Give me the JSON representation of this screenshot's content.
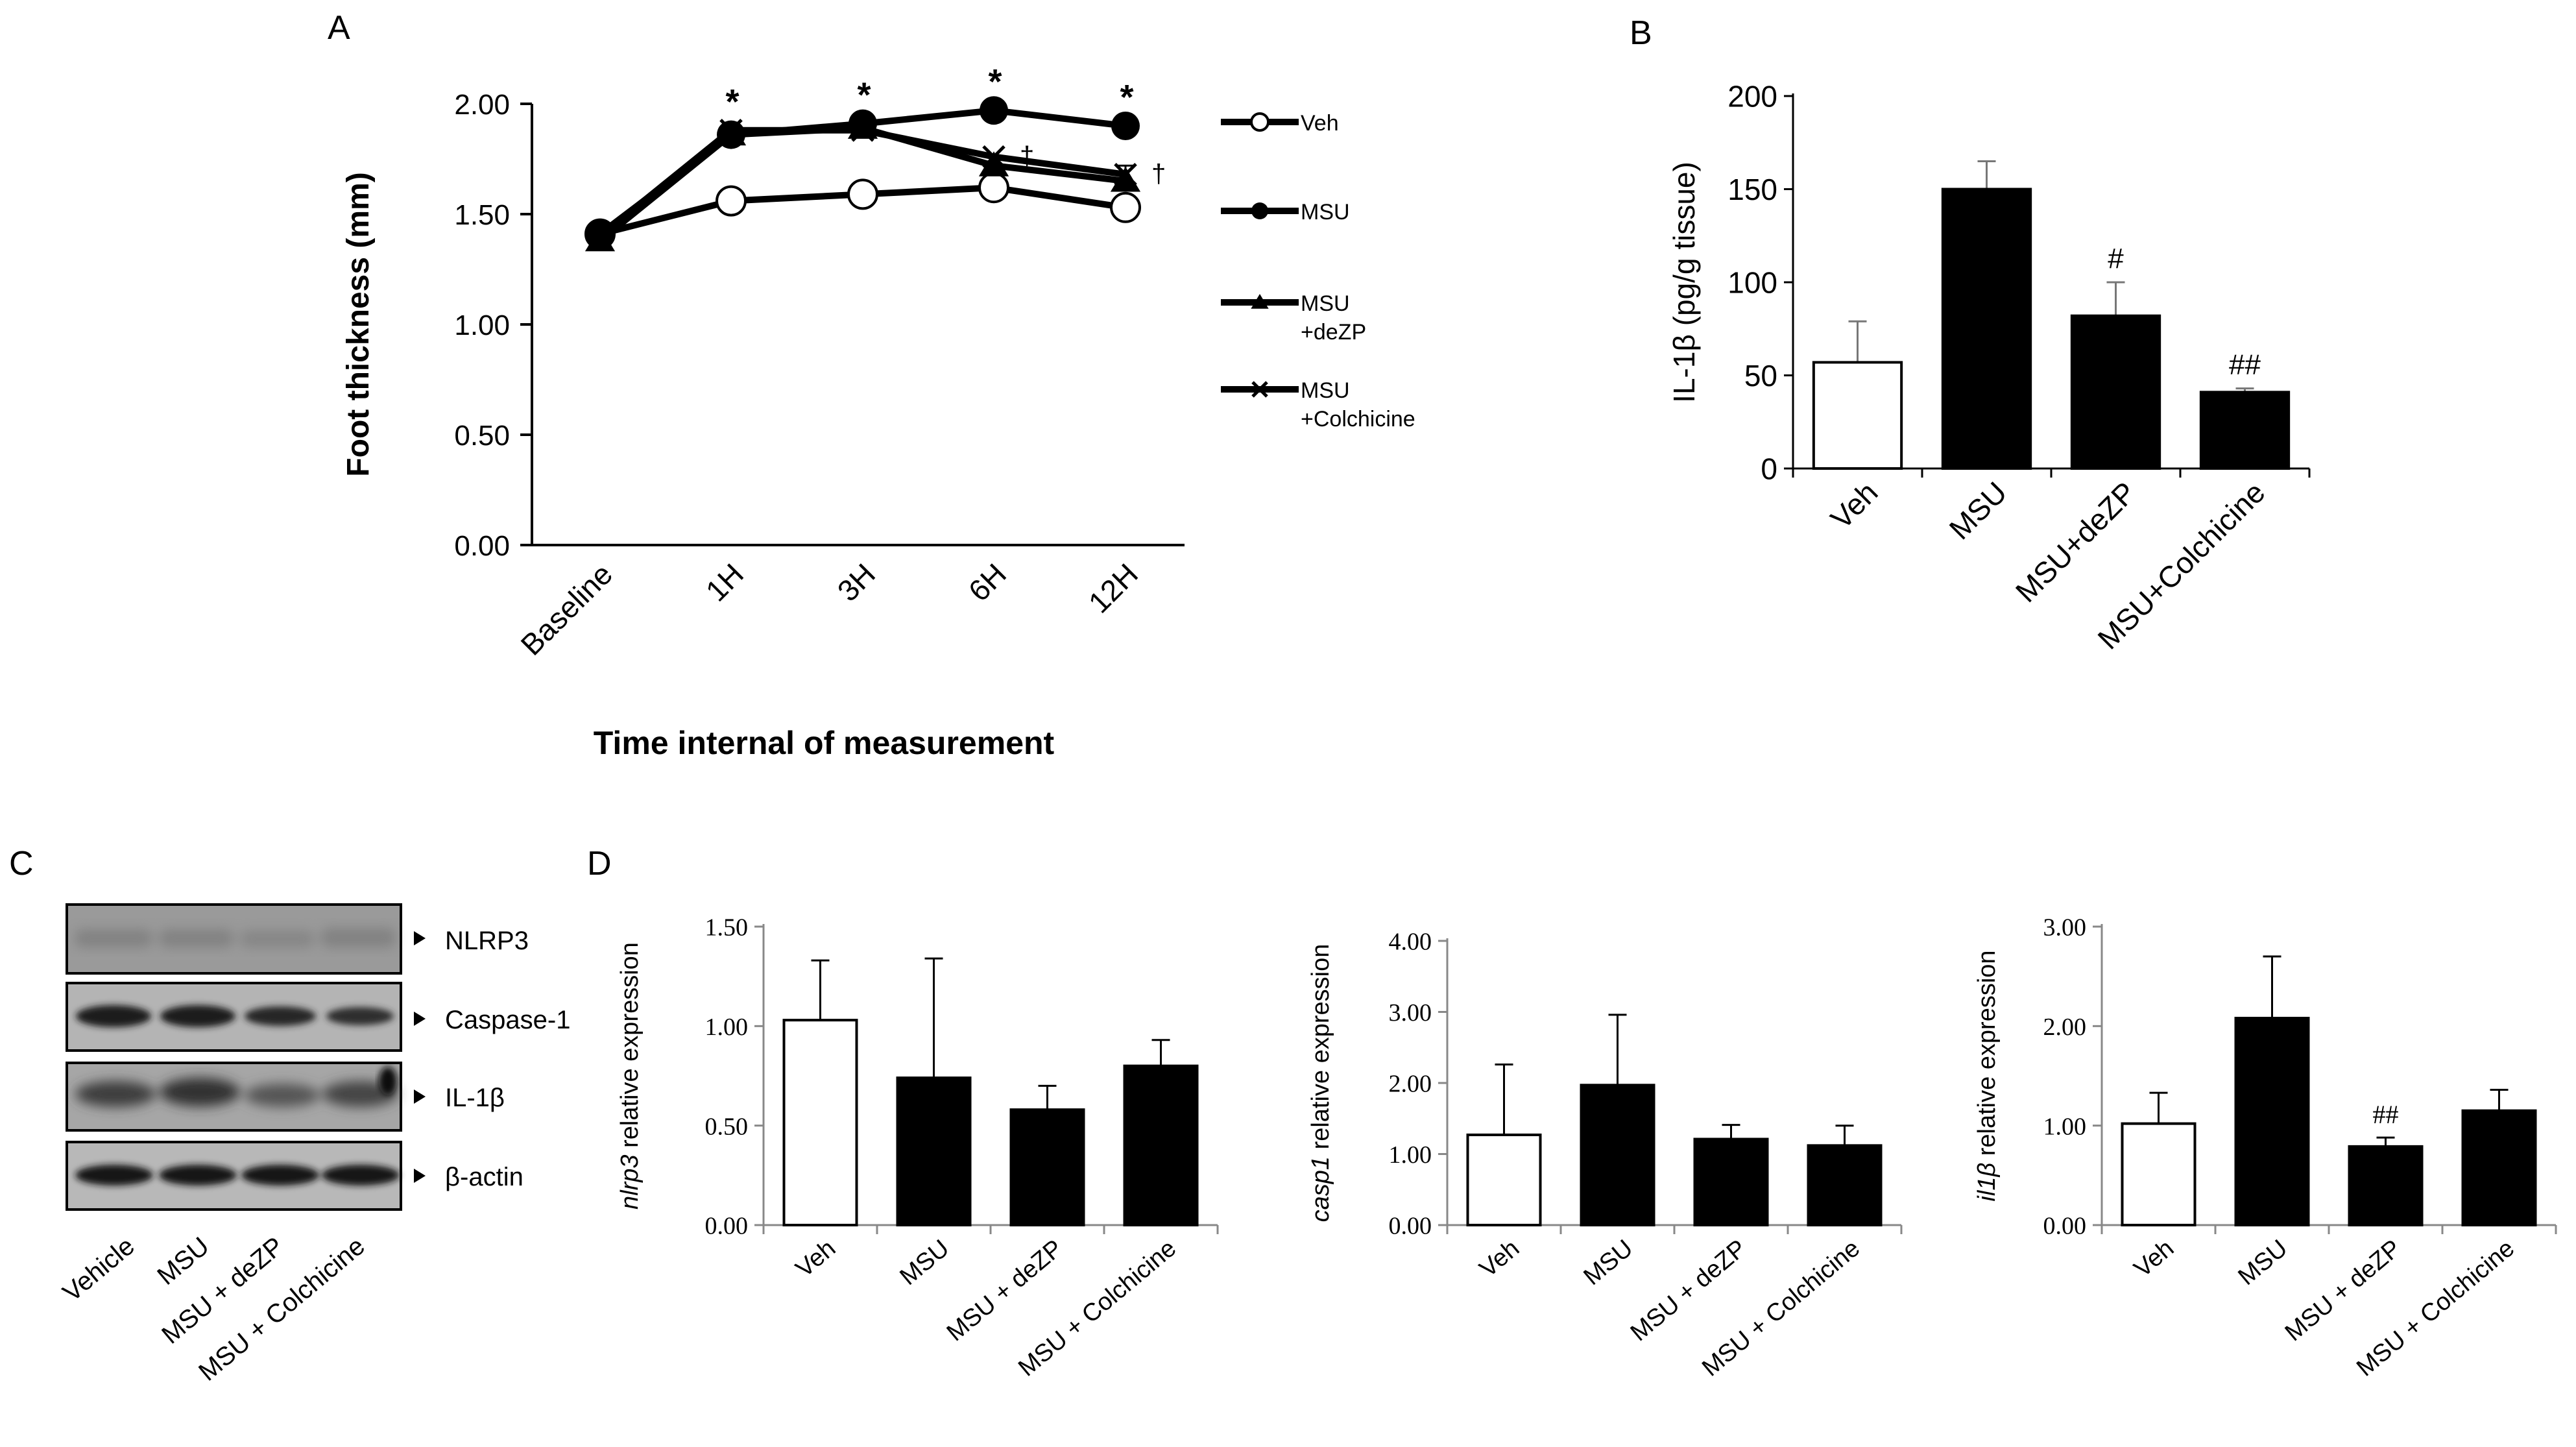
{
  "chart_data": [
    {
      "id": "A",
      "panel_label": "A",
      "type": "line",
      "xlabel": "Time internal of measurement",
      "ylabel": "Foot thickness (mm)",
      "categories": [
        "Baseline",
        "1H",
        "3H",
        "6H",
        "12H"
      ],
      "ylim": [
        0,
        2
      ],
      "yticks": [
        "0.00",
        "0.50",
        "1.00",
        "1.50",
        "2.00"
      ],
      "grid": false,
      "legend_position": "right",
      "series": [
        {
          "name": "Veh",
          "marker": "open-circle",
          "values": [
            1.41,
            1.56,
            1.59,
            1.62,
            1.53
          ]
        },
        {
          "name": "MSU",
          "marker": "filled-circle",
          "values": [
            1.41,
            1.86,
            1.91,
            1.97,
            1.9
          ]
        },
        {
          "name": "MSU +deZP",
          "legend_lines": [
            "MSU",
            "+deZP"
          ],
          "marker": "triangle",
          "values": [
            1.38,
            1.86,
            1.89,
            1.72,
            1.65
          ]
        },
        {
          "name": "MSU +Colchicine",
          "legend_lines": [
            "MSU",
            "+Colchicine"
          ],
          "marker": "cross",
          "values": [
            1.4,
            1.88,
            1.88,
            1.76,
            1.68
          ]
        }
      ],
      "annotations": [
        {
          "text": "*",
          "category": "1H"
        },
        {
          "text": "*",
          "category": "3H"
        },
        {
          "text": "*",
          "category": "6H"
        },
        {
          "text": "*",
          "category": "12H"
        },
        {
          "text": "†",
          "category": "6H"
        },
        {
          "text": "†",
          "category": "12H"
        }
      ]
    },
    {
      "id": "B",
      "panel_label": "B",
      "type": "bar",
      "ylabel": "IL-1β (pg/g tissue)",
      "categories": [
        "Veh",
        "MSU",
        "MSU+deZP",
        "MSU+Colchicine"
      ],
      "values": [
        57,
        150,
        82,
        41
      ],
      "errors": [
        22,
        15,
        18,
        2
      ],
      "fills": [
        "white",
        "black",
        "black",
        "black"
      ],
      "annotations": [
        "",
        "",
        "#",
        "##"
      ],
      "ylim": [
        0,
        200
      ],
      "yticks": [
        "0",
        "50",
        "100",
        "150",
        "200"
      ]
    },
    {
      "id": "D1",
      "type": "bar",
      "ylabel_italic": "nlrp3",
      "ylabel_rest": " relative expression",
      "categories": [
        "Veh",
        "MSU",
        "MSU + deZP",
        "MSU + Colchicine"
      ],
      "values": [
        1.03,
        0.74,
        0.58,
        0.8
      ],
      "errors": [
        0.3,
        0.6,
        0.12,
        0.13
      ],
      "fills": [
        "white",
        "black",
        "black",
        "black"
      ],
      "annotations": [
        "",
        "",
        "",
        ""
      ],
      "ylim": [
        0,
        1.5
      ],
      "yticks": [
        "0.00",
        "0.50",
        "1.00",
        "1.50"
      ]
    },
    {
      "id": "D2",
      "type": "bar",
      "ylabel_italic": "casp1",
      "ylabel_rest": " relative expression",
      "categories": [
        "Veh",
        "MSU",
        "MSU + deZP",
        "MSU + Colchicine"
      ],
      "values": [
        1.27,
        1.97,
        1.21,
        1.12
      ],
      "errors": [
        0.99,
        0.99,
        0.2,
        0.28
      ],
      "fills": [
        "white",
        "black",
        "black",
        "black"
      ],
      "annotations": [
        "",
        "",
        "",
        ""
      ],
      "ylim": [
        0,
        4
      ],
      "yticks": [
        "0.00",
        "1.00",
        "2.00",
        "3.00",
        "4.00"
      ]
    },
    {
      "id": "D3",
      "type": "bar",
      "ylabel_italic": "il1β",
      "ylabel_rest": " relative expression",
      "categories": [
        "Veh",
        "MSU",
        "MSU + deZP",
        "MSU + Colchicine"
      ],
      "values": [
        1.02,
        2.08,
        0.79,
        1.15
      ],
      "errors": [
        0.31,
        0.62,
        0.09,
        0.21
      ],
      "fills": [
        "white",
        "black",
        "black",
        "black"
      ],
      "annotations": [
        "",
        "",
        "##",
        ""
      ],
      "ylim": [
        0,
        3
      ],
      "yticks": [
        "0.00",
        "1.00",
        "2.00",
        "3.00"
      ]
    }
  ],
  "blot": {
    "panel_label": "C",
    "bands": [
      "NLRP3",
      "Caspase-1",
      "IL-1β",
      "β-actin"
    ],
    "lanes": [
      "Vehicle",
      "MSU",
      "MSU + deZP",
      "MSU + Colchicine"
    ]
  },
  "panel_d_label": "D"
}
